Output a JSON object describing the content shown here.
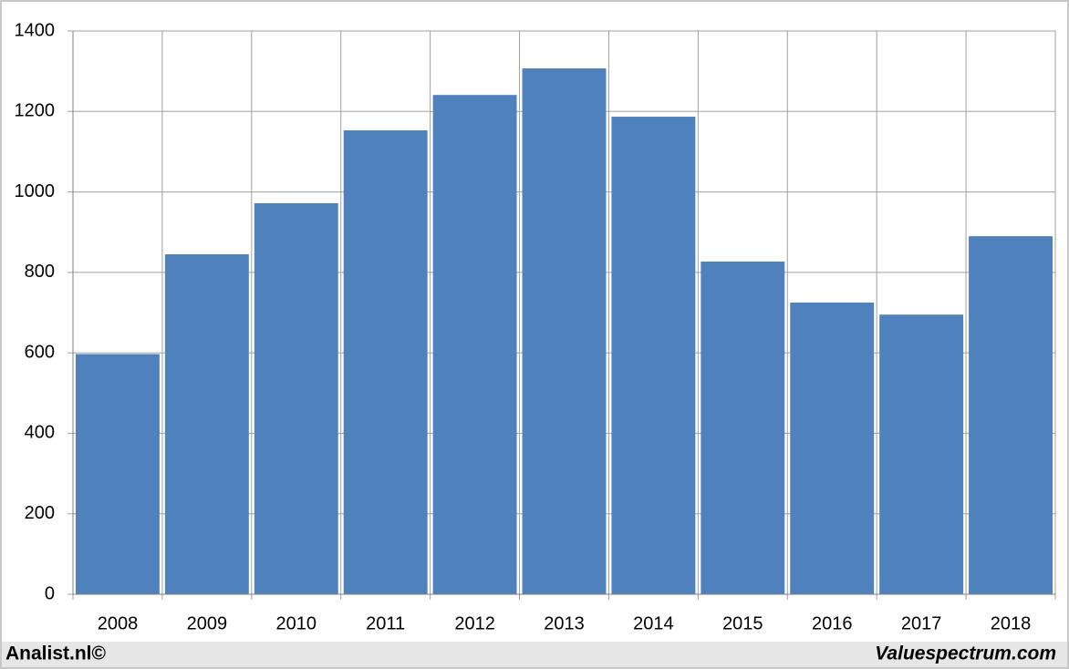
{
  "chart_data": {
    "type": "bar",
    "categories": [
      "2008",
      "2009",
      "2010",
      "2011",
      "2012",
      "2013",
      "2014",
      "2015",
      "2016",
      "2017",
      "2018"
    ],
    "values": [
      597,
      845,
      972,
      1153,
      1241,
      1307,
      1187,
      827,
      725,
      695,
      890
    ],
    "color": "#4f81bd",
    "ylim": [
      0,
      1400
    ],
    "yticks": [
      0,
      200,
      400,
      600,
      800,
      1000,
      1200,
      1400
    ],
    "grid": true,
    "footer": {
      "left": "Analist.nl©",
      "right": "Valuespectrum.com"
    }
  }
}
